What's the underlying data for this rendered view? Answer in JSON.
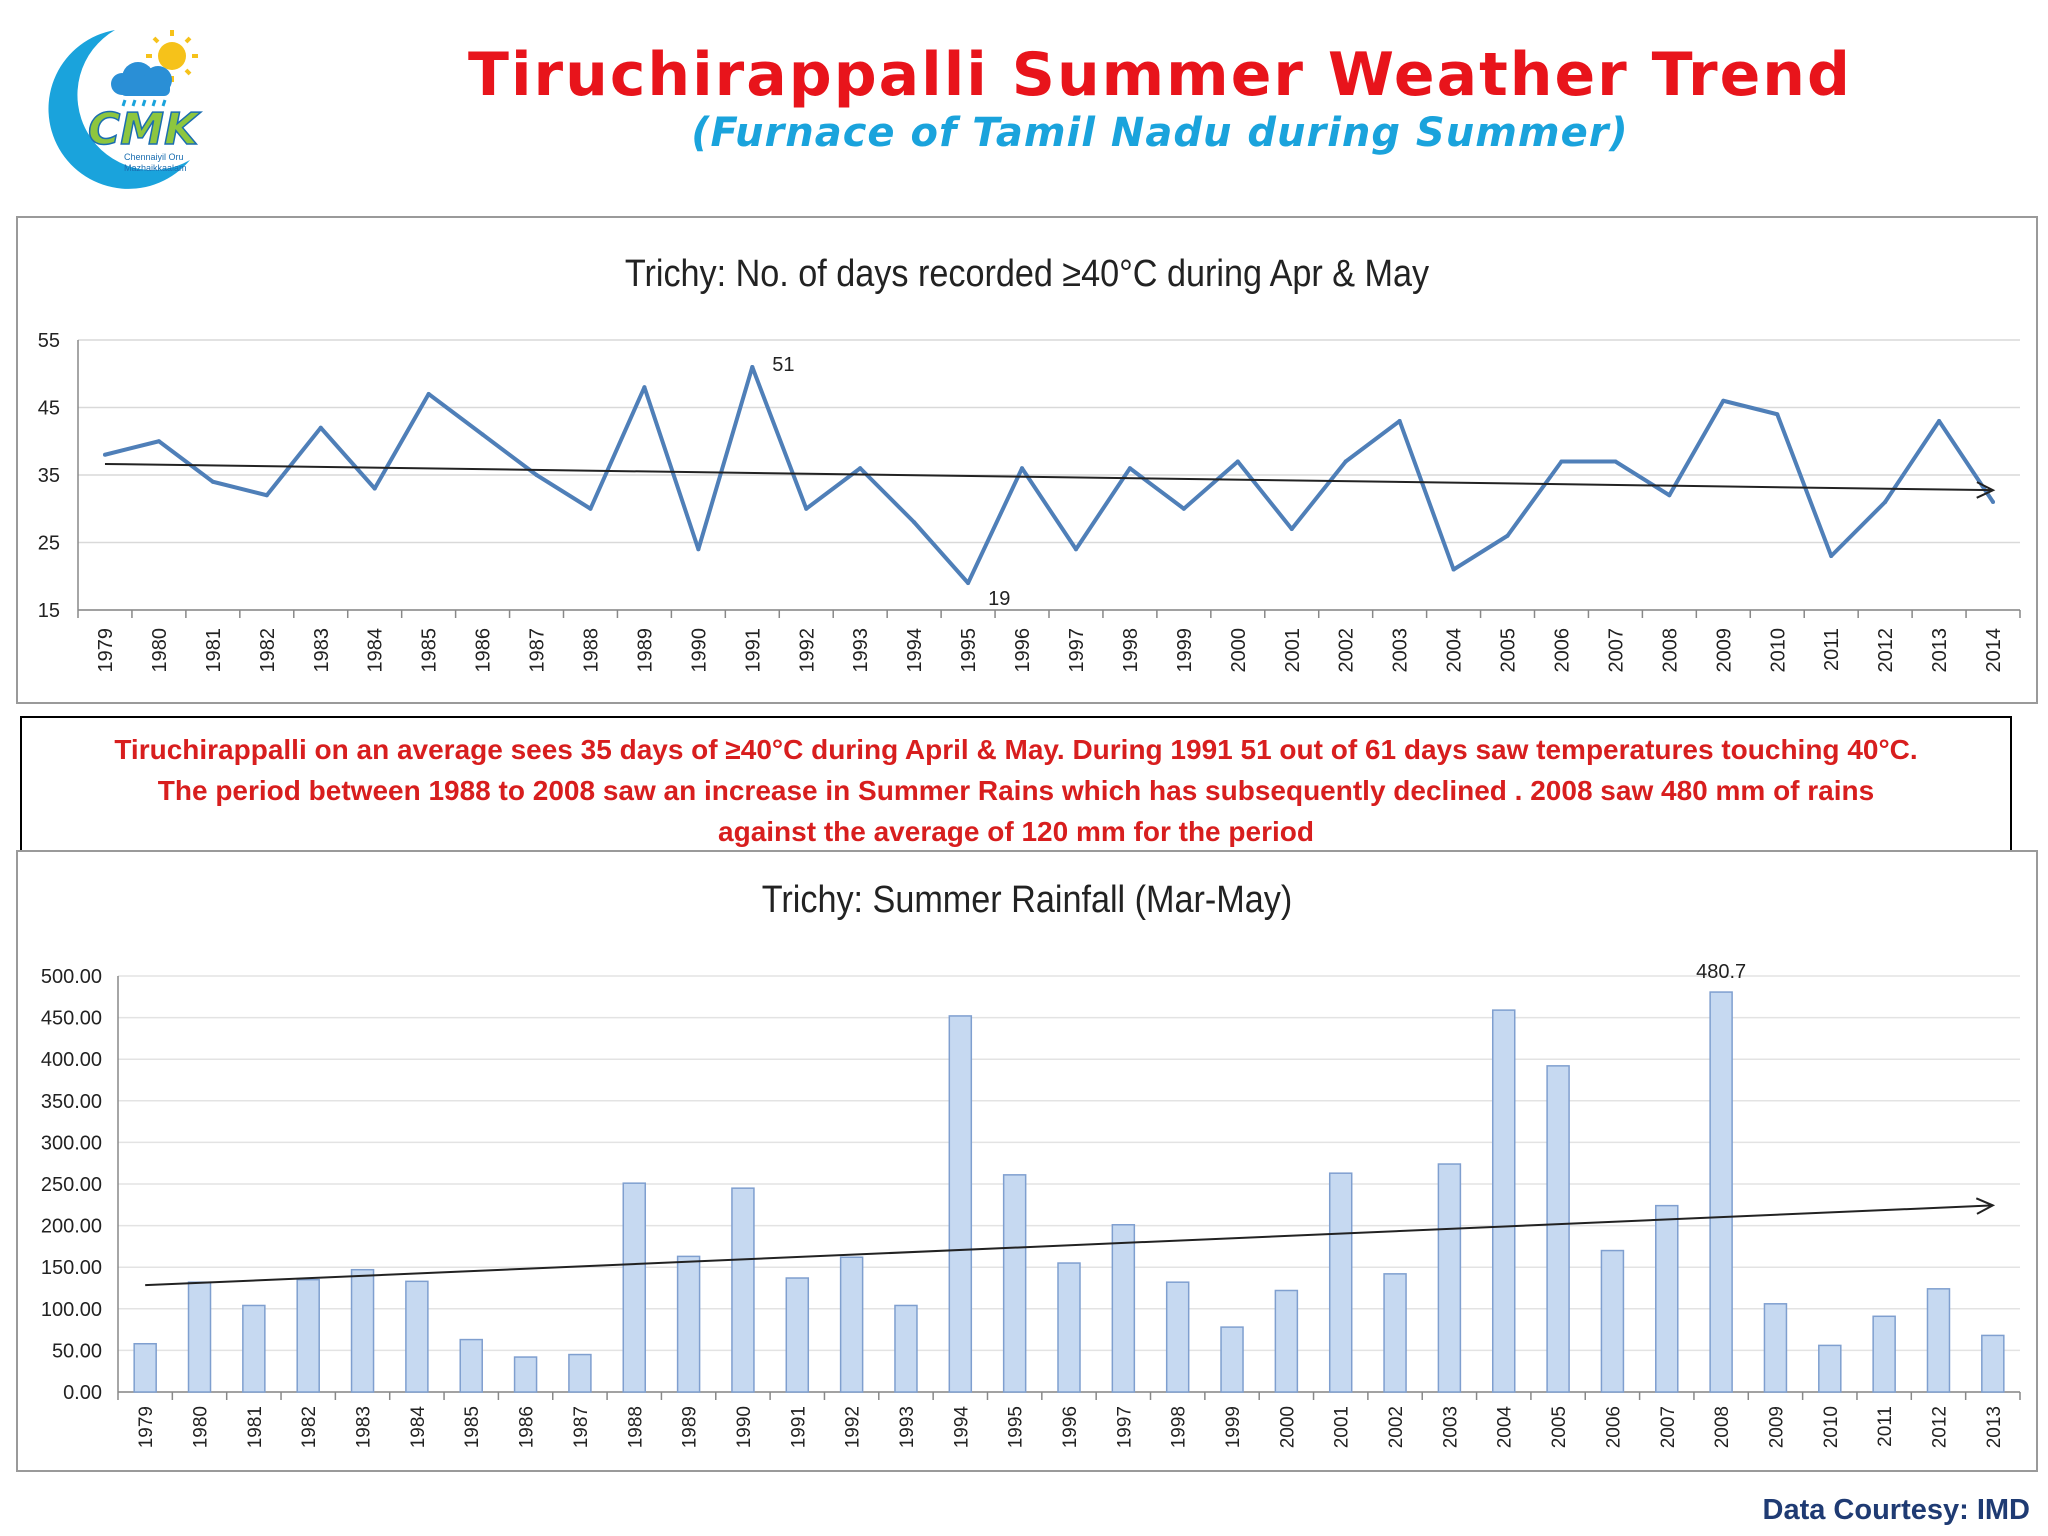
{
  "header": {
    "title": "Tiruchirappalli Summer Weather Trend",
    "subtitle": "(Furnace of Tamil Nadu during Summer)"
  },
  "logo": {
    "text": "CMK",
    "tagline_1": "Chennaiyil Oru",
    "tagline_2": "Mazhaikkaalam",
    "icon": "crescent-cloud-sun-logo"
  },
  "note": {
    "line1": "Tiruchirappalli on an average sees 35 days of ≥40°C during April & May.  During 1991 51 out of 61 days saw temperatures touching 40°C.",
    "line2": "The period between 1988 to 2008 saw an increase in Summer Rains which has subsequently declined .  2008 saw 480 mm of rains",
    "line3": "against the average of 120 mm for the period"
  },
  "footer": {
    "courtesy": "Data Courtesy:  IMD"
  },
  "colors": {
    "title": "#e8141b",
    "subtitle": "#1aa3dc",
    "line": "#4f7fb8",
    "bar_fill": "#c6d9f1",
    "bar_stroke": "#7f9fcf",
    "note_text": "#d81e1e"
  },
  "chart_data": [
    {
      "type": "line",
      "title": "Trichy: No. of days recorded ≥40°C during  Apr & May",
      "xlabel": "",
      "ylabel": "",
      "ylim": [
        15,
        55
      ],
      "yticks": [
        "15",
        "25",
        "35",
        "45",
        "55"
      ],
      "grid": true,
      "trendline": true,
      "x": [
        "1979",
        "1980",
        "1981",
        "1982",
        "1983",
        "1984",
        "1985",
        "1986",
        "1987",
        "1988",
        "1989",
        "1990",
        "1991",
        "1992",
        "1993",
        "1994",
        "1995",
        "1996",
        "1997",
        "1998",
        "1999",
        "2000",
        "2001",
        "2002",
        "2003",
        "2004",
        "2005",
        "2006",
        "2007",
        "2008",
        "2009",
        "2010",
        "2011",
        "2012",
        "2013",
        "2014"
      ],
      "series": [
        {
          "values": [
            38,
            40,
            34,
            32,
            42,
            33,
            47,
            41,
            35,
            30,
            48,
            24,
            51,
            30,
            36,
            28,
            19,
            36,
            24,
            36,
            30,
            37,
            27,
            37,
            43,
            21,
            26,
            37,
            37,
            32,
            46,
            44,
            23,
            31,
            43,
            31
          ]
        }
      ],
      "annotations": [
        {
          "x": "1991",
          "y": 51,
          "label": "51"
        },
        {
          "x": "1995",
          "y": 19,
          "label": "19"
        }
      ]
    },
    {
      "type": "bar",
      "title": "Trichy: Summer Rainfall (Mar-May)",
      "xlabel": "",
      "ylabel": "",
      "ylim": [
        0,
        500
      ],
      "yticks": [
        "0.00",
        "50.00",
        "100.00",
        "150.00",
        "200.00",
        "250.00",
        "300.00",
        "350.00",
        "400.00",
        "450.00",
        "500.00"
      ],
      "grid": true,
      "trendline": true,
      "categories": [
        "1979",
        "1980",
        "1981",
        "1982",
        "1983",
        "1984",
        "1985",
        "1986",
        "1987",
        "1988",
        "1989",
        "1990",
        "1991",
        "1992",
        "1993",
        "1994",
        "1995",
        "1996",
        "1997",
        "1998",
        "1999",
        "2000",
        "2001",
        "2002",
        "2003",
        "2004",
        "2005",
        "2006",
        "2007",
        "2008",
        "2009",
        "2010",
        "2011",
        "2012",
        "2013"
      ],
      "series": [
        {
          "values": [
            58,
            132,
            104,
            135,
            147,
            133,
            63,
            42,
            45,
            251,
            163,
            245,
            137,
            162,
            104,
            452,
            261,
            155,
            201,
            132,
            78,
            122,
            263,
            142,
            274,
            459,
            392,
            170,
            224,
            480.7,
            106,
            56,
            91,
            124,
            68
          ]
        }
      ],
      "annotations": [
        {
          "x": "2008",
          "y": 480.7,
          "label": "480.7"
        }
      ]
    }
  ]
}
